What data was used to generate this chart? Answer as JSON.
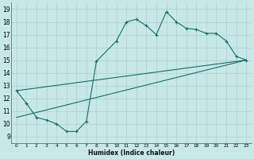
{
  "xlabel": "Humidex (Indice chaleur)",
  "xlim": [
    -0.5,
    23.5
  ],
  "ylim": [
    8.5,
    19.5
  ],
  "xticks": [
    0,
    1,
    2,
    3,
    4,
    5,
    6,
    7,
    8,
    9,
    10,
    11,
    12,
    13,
    14,
    15,
    16,
    17,
    18,
    19,
    20,
    21,
    22,
    23
  ],
  "yticks": [
    9,
    10,
    11,
    12,
    13,
    14,
    15,
    16,
    17,
    18,
    19
  ],
  "bg_color": "#c8e8e8",
  "line_color": "#1a6b6b",
  "grid_color": "#aacfcf",
  "line1_x": [
    0,
    1,
    2,
    3,
    4,
    5,
    6,
    7,
    8,
    10,
    11,
    12,
    13,
    14,
    15,
    16,
    17,
    18,
    19,
    20,
    21,
    22,
    23
  ],
  "line1_y": [
    12.6,
    11.6,
    10.5,
    10.3,
    10.0,
    9.4,
    9.4,
    10.2,
    14.9,
    16.5,
    18.0,
    18.2,
    17.7,
    17.0,
    18.8,
    18.0,
    17.5,
    17.4,
    17.1,
    17.1,
    16.5,
    15.3,
    15.0
  ],
  "line2_x": [
    0,
    23
  ],
  "line2_y": [
    10.5,
    15.0
  ],
  "line3_x": [
    0,
    23
  ],
  "line3_y": [
    12.6,
    15.0
  ]
}
